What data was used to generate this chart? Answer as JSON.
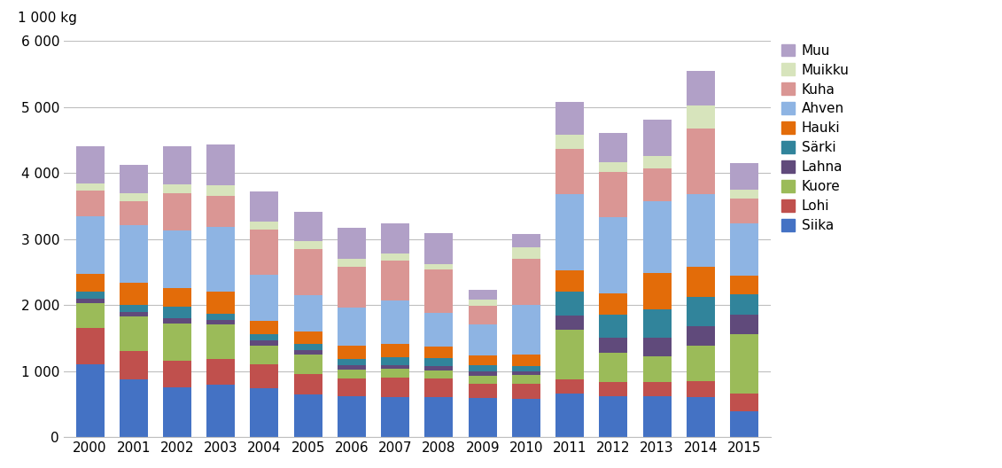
{
  "years": [
    2000,
    2001,
    2002,
    2003,
    2004,
    2005,
    2006,
    2007,
    2008,
    2009,
    2010,
    2011,
    2012,
    2013,
    2014,
    2015
  ],
  "species": [
    "Siika",
    "Lohi",
    "Kuore",
    "Lahna",
    "Särki",
    "Hauki",
    "Ahven",
    "Kuha",
    "Muikku",
    "Muu"
  ],
  "colors": [
    "#4472C4",
    "#C0504D",
    "#9BBB59",
    "#604A7B",
    "#31849B",
    "#E36C09",
    "#8EB4E3",
    "#DA9694",
    "#D7E4BC",
    "#B1A0C7"
  ],
  "data": {
    "Siika": [
      1100,
      870,
      760,
      790,
      740,
      650,
      620,
      610,
      610,
      590,
      580,
      660,
      620,
      620,
      610,
      390
    ],
    "Lohi": [
      560,
      430,
      390,
      390,
      360,
      310,
      270,
      290,
      280,
      220,
      230,
      220,
      220,
      220,
      240,
      270
    ],
    "Kuore": [
      370,
      530,
      570,
      530,
      290,
      290,
      130,
      130,
      120,
      120,
      130,
      750,
      440,
      380,
      540,
      900
    ],
    "Lahna": [
      70,
      70,
      80,
      60,
      70,
      65,
      70,
      65,
      65,
      60,
      60,
      210,
      230,
      290,
      290,
      300
    ],
    "Särki": [
      100,
      100,
      170,
      100,
      100,
      100,
      100,
      120,
      120,
      100,
      80,
      370,
      340,
      420,
      440,
      310
    ],
    "Hauki": [
      270,
      340,
      290,
      330,
      200,
      190,
      200,
      200,
      180,
      150,
      170,
      320,
      330,
      550,
      460,
      270
    ],
    "Ahven": [
      880,
      870,
      870,
      980,
      700,
      550,
      570,
      650,
      510,
      470,
      750,
      1150,
      1150,
      1100,
      1100,
      800
    ],
    "Kuha": [
      390,
      360,
      570,
      480,
      680,
      700,
      620,
      610,
      650,
      280,
      700,
      690,
      690,
      490,
      990,
      380
    ],
    "Muikku": [
      100,
      130,
      130,
      160,
      130,
      120,
      120,
      110,
      85,
      95,
      170,
      210,
      150,
      190,
      360,
      130
    ],
    "Muu": [
      560,
      420,
      570,
      610,
      450,
      440,
      470,
      450,
      470,
      140,
      210,
      500,
      440,
      550,
      520,
      400
    ]
  },
  "ylabel": "1 000 kg",
  "ylim": [
    0,
    6000
  ],
  "yticks": [
    0,
    1000,
    2000,
    3000,
    4000,
    5000,
    6000
  ],
  "ytick_labels": [
    "0",
    "1 000",
    "2 000",
    "3 000",
    "4 000",
    "5 000",
    "6 000"
  ],
  "background_color": "#FFFFFF",
  "grid_color": "#BFBFBF"
}
